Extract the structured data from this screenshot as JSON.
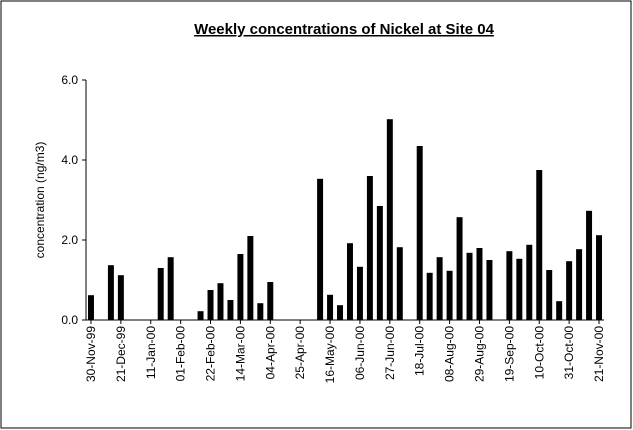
{
  "chart_data": {
    "type": "bar",
    "title": "Weekly concentrations of Nickel at Site 04",
    "y_label": "concentration (ng/m3)",
    "categories": [
      "30-Nov-99",
      null,
      null,
      "21-Dec-99",
      null,
      null,
      "11-Jan-00",
      null,
      null,
      "01-Feb-00",
      null,
      null,
      "22-Feb-00",
      null,
      null,
      "14-Mar-00",
      null,
      null,
      "04-Apr-00",
      null,
      null,
      "25-Apr-00",
      null,
      null,
      "16-May-00",
      null,
      null,
      "06-Jun-00",
      null,
      null,
      "27-Jun-00",
      null,
      null,
      "18-Jul-00",
      null,
      null,
      "08-Aug-00",
      null,
      null,
      "29-Aug-00",
      null,
      null,
      "19-Sep-00",
      null,
      null,
      "10-Oct-00",
      null,
      null,
      "31-Oct-00",
      null,
      null,
      "21-Nov-00"
    ],
    "values": [
      0.62,
      null,
      1.37,
      1.12,
      null,
      null,
      null,
      1.3,
      1.57,
      null,
      null,
      0.22,
      0.75,
      0.92,
      0.5,
      1.65,
      2.1,
      0.42,
      0.95,
      null,
      null,
      null,
      null,
      3.53,
      0.63,
      0.37,
      1.92,
      1.33,
      3.6,
      2.85,
      5.02,
      1.82,
      null,
      4.35,
      1.18,
      1.57,
      1.23,
      2.57,
      1.68,
      1.8,
      1.5,
      null,
      1.72,
      1.53,
      1.88,
      3.75,
      1.25,
      0.47,
      1.47,
      1.77,
      2.73,
      2.12
    ],
    "color": "#000000",
    "ylim": [
      0,
      6
    ],
    "yticks": [
      {
        "value": 0,
        "label": "0.0"
      },
      {
        "value": 2,
        "label": "2.0"
      },
      {
        "value": 4,
        "label": "4.0"
      },
      {
        "value": 6,
        "label": "6.0"
      }
    ],
    "grid": false
  }
}
